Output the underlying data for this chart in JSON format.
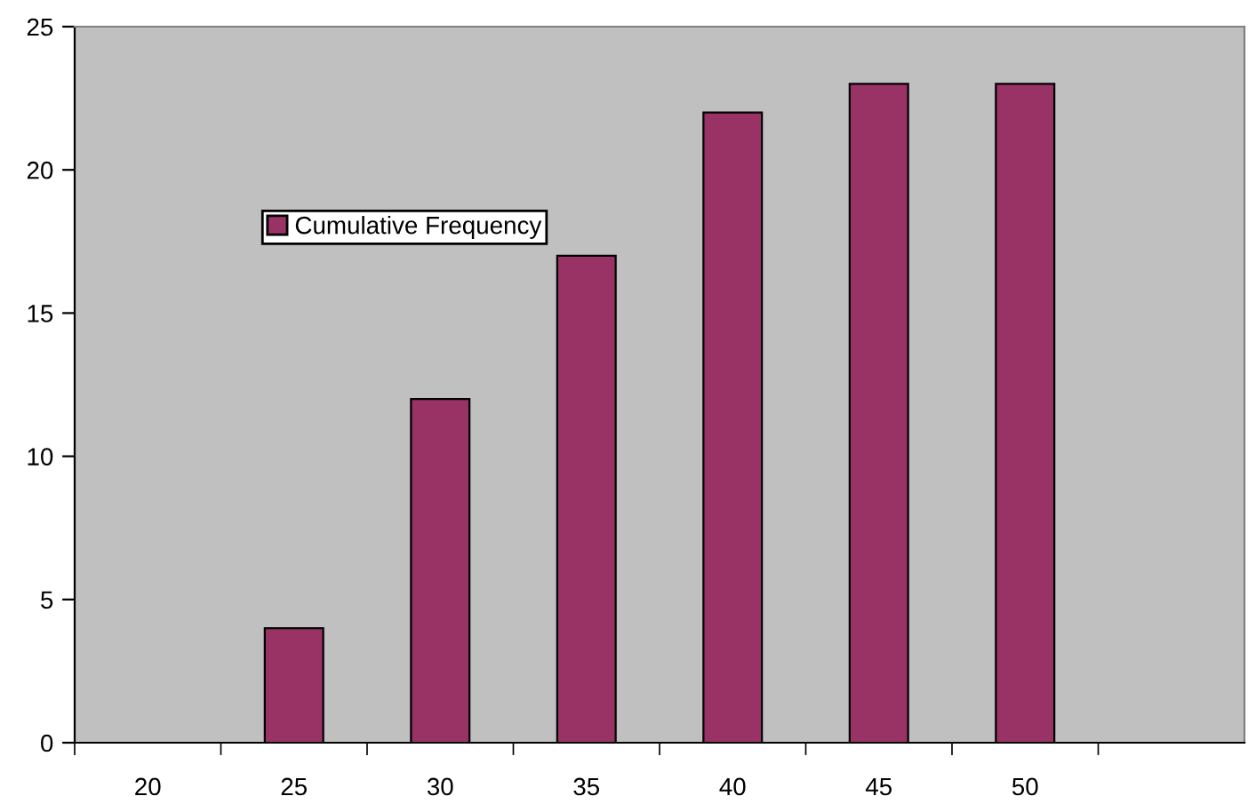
{
  "chart_data": {
    "type": "bar",
    "categories": [
      "20",
      "25",
      "30",
      "35",
      "40",
      "45",
      "50",
      null
    ],
    "series": [
      {
        "name": "Cumulative Frequency",
        "color": "#993366",
        "values": [
          0,
          4,
          12,
          17,
          22,
          23,
          23,
          null
        ]
      }
    ],
    "ylim": [
      0,
      25
    ],
    "yticks": [
      0,
      5,
      10,
      15,
      20,
      25
    ],
    "grid": false,
    "legend": "top left"
  }
}
